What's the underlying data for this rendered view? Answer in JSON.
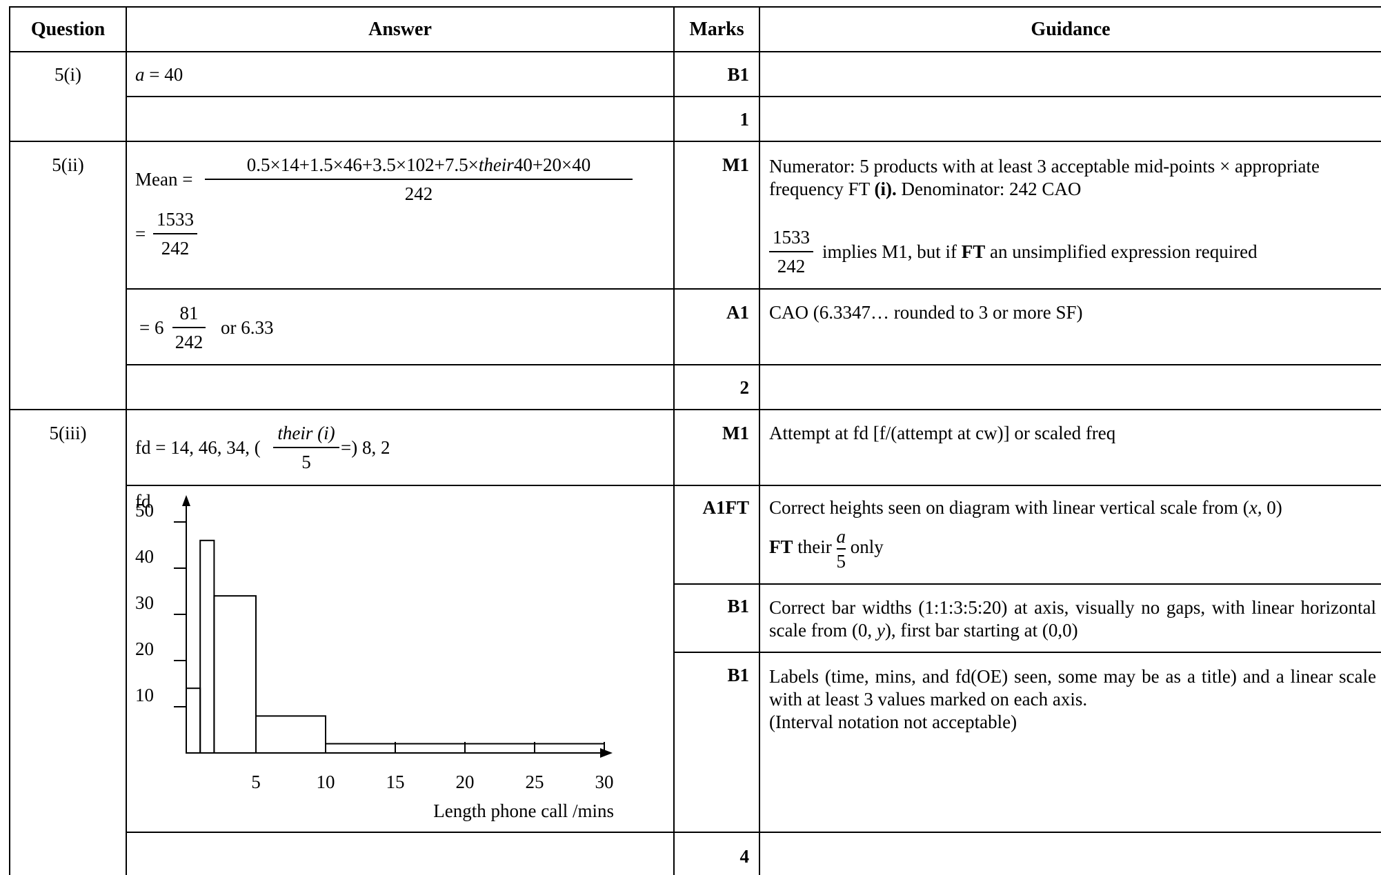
{
  "headers": {
    "question": "Question",
    "answer": "Answer",
    "marks": "Marks",
    "guidance": "Guidance"
  },
  "q5i": {
    "label": "5(i)",
    "answer_var": "a",
    "answer_rest": " = 40",
    "mark": "B1",
    "total": "1"
  },
  "q5ii": {
    "label": "5(ii)",
    "mean_label": "Mean =",
    "numerator_a": "0.5×14+1.5×46+3.5×102+7.5×",
    "numerator_their": "their",
    "numerator_b": "40+20×40",
    "denominator": "242",
    "eq_prefix": "=",
    "frac_num": "1533",
    "frac_den": "242",
    "mark1": "M1",
    "guidance1_a": "Numerator: 5 products with at least 3 acceptable mid-points × appropriate frequency FT ",
    "guidance1_b": "(i).",
    "guidance1_c": " Denominator: 242 CAO",
    "guidance1_frac_num": "1533",
    "guidance1_frac_den": "242",
    "guidance1_d": "implies M1, but if ",
    "guidance1_e": "FT",
    "guidance1_f": " an unsimplified expression required",
    "result_prefix": "= 6",
    "result_num": "81",
    "result_den": "242",
    "result_suffix": "or 6.33",
    "mark2": "A1",
    "guidance2": "CAO  (6.3347… rounded to 3 or more SF)",
    "total": "2"
  },
  "q5iii": {
    "label": "5(iii)",
    "fd_prefix": "fd = 14, 46, 34, (",
    "fd_num": "their (i)",
    "fd_den": "5",
    "fd_suffix": "=) 8, 2",
    "mark1": "M1",
    "guidance1": "Attempt at fd [f/(attempt at cw)] or scaled freq",
    "mark2": "A1FT",
    "guidance2_a": "Correct heights seen on diagram with linear vertical scale from (",
    "guidance2_x": "x,",
    "guidance2_b": " 0)",
    "guidance2_ft": "FT",
    "guidance2_their": "their",
    "guidance2_num": "a",
    "guidance2_den": "5",
    "guidance2_only": "only",
    "mark3": "B1",
    "guidance3_a": "Correct bar widths (1:1:3:5:20) at axis, visually no gaps, with linear horizontal scale from (0, ",
    "guidance3_y": "y",
    "guidance3_b": "), first bar starting at (0,0)",
    "mark4": "B1",
    "guidance4_l1": "Labels (time, mins, and fd(OE) seen, some may be as a title) and a linear scale with at least 3 values marked on each axis.",
    "guidance4_l2": "(Interval notation not acceptable)",
    "total": "4"
  },
  "chart_data": {
    "type": "bar",
    "title": "",
    "ylabel": "fd",
    "xlabel": "Length phone call /mins",
    "bins": [
      {
        "from": 0,
        "to": 1,
        "fd": 14
      },
      {
        "from": 1,
        "to": 2,
        "fd": 46
      },
      {
        "from": 2,
        "to": 5,
        "fd": 34
      },
      {
        "from": 5,
        "to": 10,
        "fd": 8
      },
      {
        "from": 10,
        "to": 30,
        "fd": 2
      }
    ],
    "xticks": [
      "5",
      "10",
      "15",
      "20",
      "25",
      "30"
    ],
    "yticks": [
      "10",
      "20",
      "30",
      "40",
      "50"
    ],
    "xlim": [
      0,
      30
    ],
    "ylim": [
      0,
      50
    ]
  }
}
